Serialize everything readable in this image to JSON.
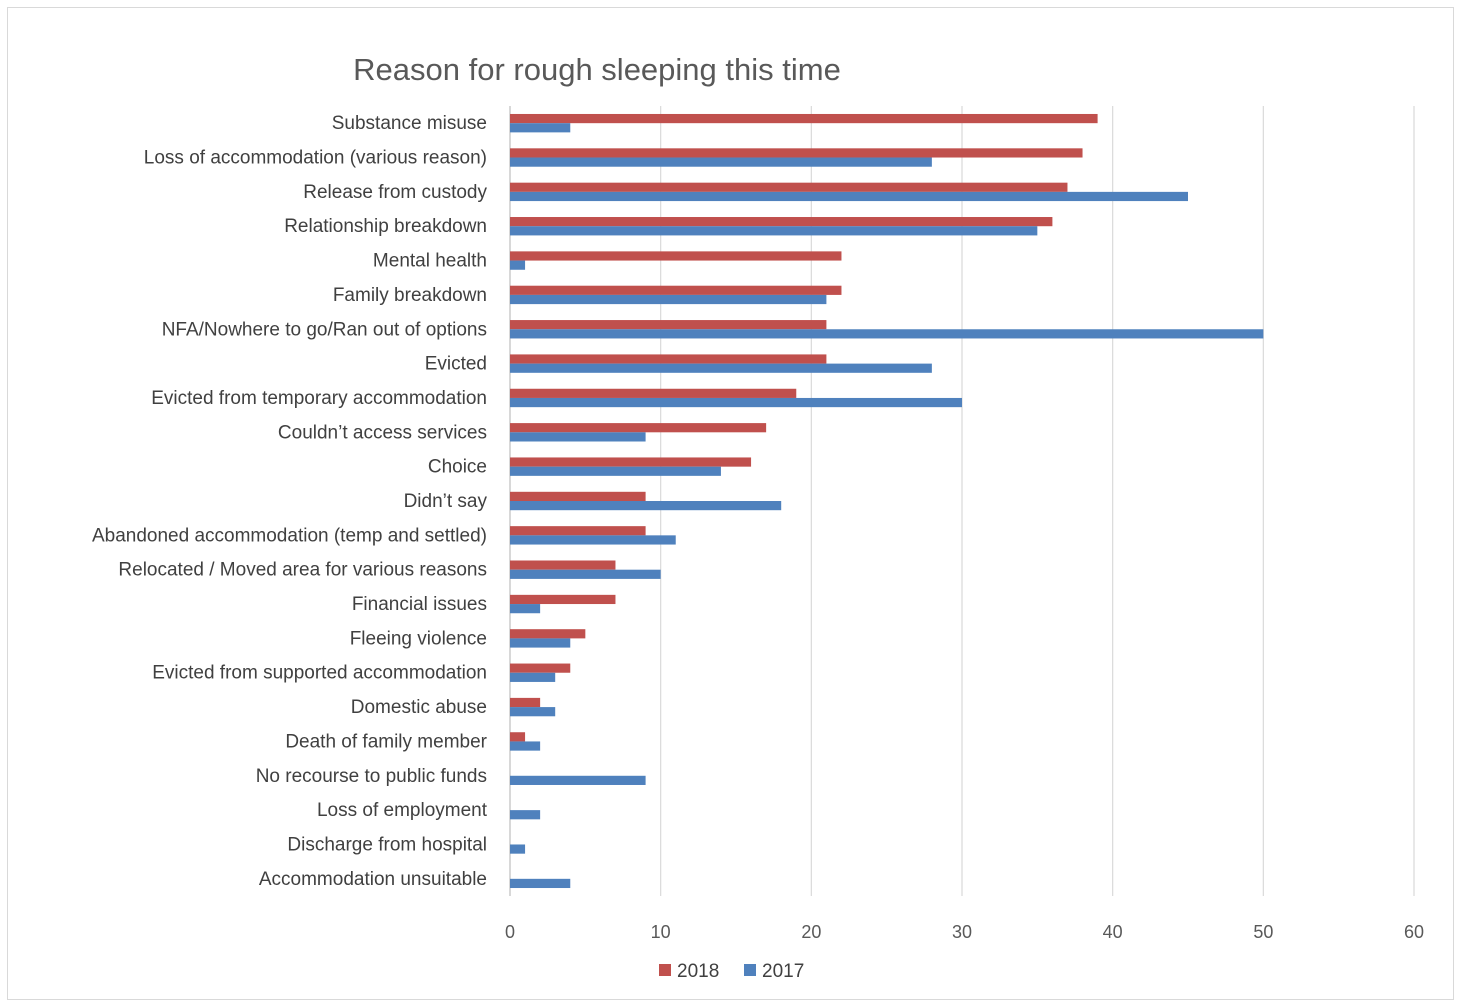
{
  "chart_data": {
    "type": "bar",
    "orientation": "horizontal",
    "title": "Reason for rough sleeping this time",
    "xlabel": "",
    "ylabel": "",
    "xlim": [
      0,
      60
    ],
    "xticks": [
      0,
      10,
      20,
      30,
      40,
      50,
      60
    ],
    "grid": true,
    "legend_position": "bottom",
    "categories": [
      "Substance misuse",
      "Loss of accommodation (various reason)",
      "Release from custody",
      "Relationship breakdown",
      "Mental health",
      "Family breakdown",
      "NFA/Nowhere to go/Ran out of options",
      "Evicted",
      "Evicted from temporary accommodation",
      "Couldn’t access services",
      "Choice",
      "Didn’t say",
      "Abandoned accommodation (temp and settled)",
      "Relocated / Moved area for various reasons",
      "Financial issues",
      "Fleeing violence",
      "Evicted from supported accommodation",
      "Domestic abuse",
      "Death of family member",
      "No recourse to public funds",
      "Loss of employment",
      "Discharge from hospital",
      "Accommodation unsuitable"
    ],
    "series": [
      {
        "name": "2018",
        "color": "#c0504d",
        "values": [
          39,
          38,
          37,
          36,
          22,
          22,
          21,
          21,
          19,
          17,
          16,
          9,
          9,
          7,
          7,
          5,
          4,
          2,
          1,
          0,
          0,
          0,
          0
        ]
      },
      {
        "name": "2017",
        "color": "#4f81bd",
        "values": [
          4,
          28,
          45,
          35,
          1,
          21,
          50,
          28,
          30,
          9,
          14,
          18,
          11,
          10,
          2,
          4,
          3,
          3,
          2,
          9,
          2,
          1,
          4
        ]
      }
    ]
  }
}
